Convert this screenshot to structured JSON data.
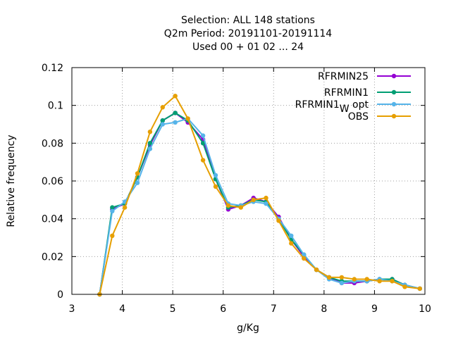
{
  "chart_data": {
    "type": "line",
    "title_lines": [
      "Selection: ALL    148 stations",
      "Q2m  Period: 20191101-20191114",
      "Used  00 + 01 02 ... 24"
    ],
    "xlabel": "g/Kg",
    "ylabel": "Relative frequency",
    "xlim": [
      3,
      10
    ],
    "ylim": [
      0,
      0.12
    ],
    "xticks": [
      "3",
      "4",
      "5",
      "6",
      "7",
      "8",
      "9",
      "10"
    ],
    "yticks": [
      "0",
      "0.02",
      "0.04",
      "0.06",
      "0.08",
      "0.1",
      "0.12"
    ],
    "grid": true,
    "legend_position": "top-right",
    "x": [
      3.55,
      3.8,
      4.05,
      4.3,
      4.55,
      4.8,
      5.05,
      5.3,
      5.6,
      5.85,
      6.1,
      6.35,
      6.6,
      6.85,
      7.1,
      7.35,
      7.6,
      7.85,
      8.1,
      8.35,
      8.6,
      8.85,
      9.1,
      9.35,
      9.6,
      9.9
    ],
    "series": [
      {
        "name": "RFRMIN25",
        "color": "#9400d3",
        "values": [
          0.0,
          0.045,
          0.048,
          0.062,
          0.079,
          0.092,
          0.096,
          0.091,
          0.082,
          0.061,
          0.045,
          0.047,
          0.051,
          0.049,
          0.041,
          0.029,
          0.02,
          0.013,
          0.009,
          0.006,
          0.006,
          0.007,
          0.008,
          0.008,
          0.005,
          0.003
        ]
      },
      {
        "name": "RFRMIN1",
        "color": "#009e73",
        "values": [
          0.0,
          0.046,
          0.048,
          0.062,
          0.08,
          0.092,
          0.096,
          0.092,
          0.08,
          0.061,
          0.046,
          0.047,
          0.05,
          0.049,
          0.04,
          0.029,
          0.021,
          0.013,
          0.009,
          0.007,
          0.007,
          0.007,
          0.008,
          0.008,
          0.005,
          0.003
        ]
      },
      {
        "name": "RFRMIN1",
        "name_sub": "W",
        "name_suffix": " opt",
        "color": "#56b4e9",
        "values": [
          0.0,
          0.044,
          0.049,
          0.059,
          0.077,
          0.09,
          0.091,
          0.093,
          0.084,
          0.063,
          0.048,
          0.047,
          0.049,
          0.048,
          0.04,
          0.031,
          0.021,
          0.013,
          0.008,
          0.006,
          0.007,
          0.007,
          0.008,
          0.007,
          0.005,
          0.003
        ]
      },
      {
        "name": "OBS",
        "color": "#e69f00",
        "values": [
          0.0,
          0.031,
          0.046,
          0.064,
          0.086,
          0.099,
          0.105,
          0.093,
          0.071,
          0.057,
          0.047,
          0.046,
          0.05,
          0.051,
          0.039,
          0.027,
          0.019,
          0.013,
          0.009,
          0.009,
          0.008,
          0.008,
          0.007,
          0.007,
          0.004,
          0.003
        ]
      }
    ]
  }
}
